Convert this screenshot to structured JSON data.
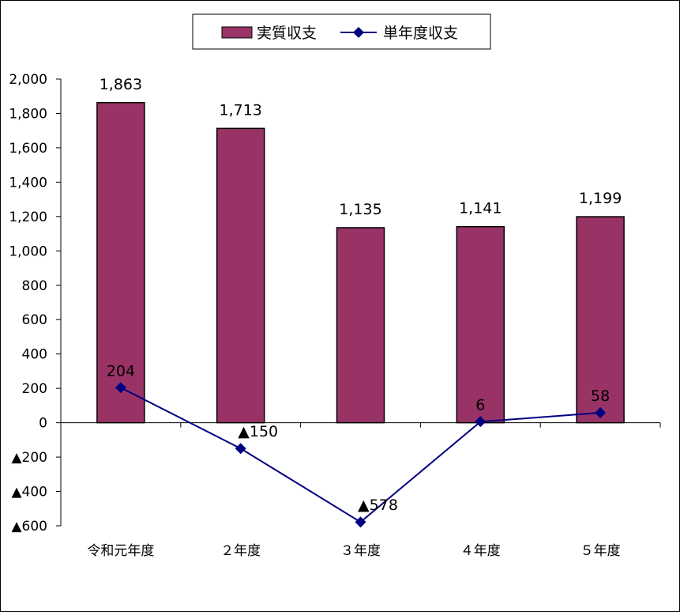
{
  "chart_data": {
    "type": "bar",
    "categories": [
      "令和元年度",
      "２年度",
      "３年度",
      "４年度",
      "５年度"
    ],
    "series": [
      {
        "name": "実質収支",
        "kind": "bar",
        "color": "#993366",
        "values": [
          1863,
          1713,
          1135,
          1141,
          1199
        ],
        "labels": [
          "1,863",
          "1,713",
          "1,135",
          "1,141",
          "1,199"
        ]
      },
      {
        "name": "単年度収支",
        "kind": "line",
        "color": "#000080",
        "values": [
          204,
          -150,
          -578,
          6,
          58
        ],
        "labels": [
          "204",
          "▲150",
          "▲578",
          "6",
          "58"
        ]
      }
    ],
    "ylim": [
      -600,
      2000
    ],
    "yticks": [
      2000,
      1800,
      1600,
      1400,
      1200,
      1000,
      800,
      600,
      400,
      200,
      0,
      -200,
      -400,
      -600
    ],
    "ytick_labels": [
      "2,000",
      "1,800",
      "1,600",
      "1,400",
      "1,200",
      "1,000",
      "800",
      "600",
      "400",
      "200",
      "0",
      "▲200",
      "▲400",
      "▲600"
    ],
    "legend": {
      "placement": "top-center",
      "entries": [
        "実質収支",
        "単年度収支"
      ]
    },
    "grid": false,
    "title": "",
    "xlabel": "",
    "ylabel": ""
  }
}
